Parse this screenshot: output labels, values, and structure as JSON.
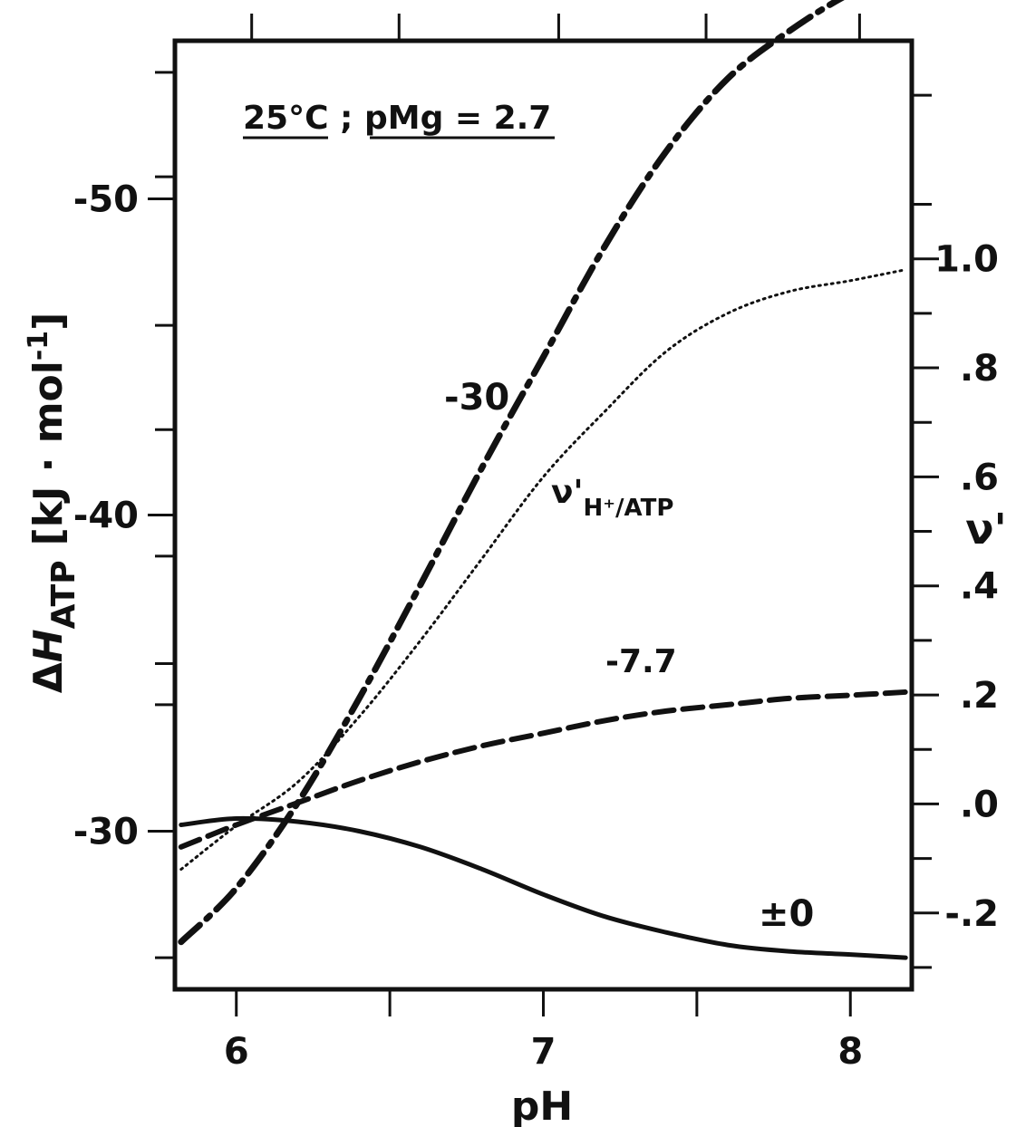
{
  "chart_data": {
    "type": "line",
    "annotation": "25°C ; pMg = 2.7",
    "xlabel": "pH",
    "ylabel_left": "ΔH_ATP [kJ·mol⁻¹]",
    "ylabel_left_parts": {
      "delta": "Δ",
      "h": "H",
      "sub": "ATP",
      "unit_open": "[kJ · mol",
      "unit_sup": "-1",
      "unit_close": "]"
    },
    "ylabel_right": "ν'",
    "xlim": [
      5.8,
      8.2
    ],
    "ylim_left": [
      -25,
      -55
    ],
    "ylim_right": [
      -0.34,
      1.4
    ],
    "x_ticks": [
      {
        "value": 6,
        "label": "6"
      },
      {
        "value": 6.5,
        "label": ""
      },
      {
        "value": 7,
        "label": "7"
      },
      {
        "value": 7.5,
        "label": ""
      },
      {
        "value": 8,
        "label": "8"
      }
    ],
    "top_ticks": [
      6.05,
      6.53,
      7.05,
      7.53,
      8.03
    ],
    "y_left_ticks": [
      {
        "value": -30,
        "label": "-30"
      },
      {
        "value": -40,
        "label": "-40"
      },
      {
        "value": -50,
        "label": "-50"
      }
    ],
    "y_left_minor_ticks": [
      -26.0,
      -34.0,
      -35.3,
      -38.7,
      -42.7,
      -46.0,
      -50.7,
      -54.0
    ],
    "y_right_ticks": [
      {
        "value": -0.2,
        "label": "-.2"
      },
      {
        "value": 0.0,
        "label": ".0"
      },
      {
        "value": 0.2,
        "label": ".2"
      },
      {
        "value": 0.4,
        "label": ".4"
      },
      {
        "value": 0.6,
        "label": ".6"
      },
      {
        "value": 0.8,
        "label": ".8"
      },
      {
        "value": 1.0,
        "label": "1.0"
      }
    ],
    "y_right_minor_ticks": [
      -0.3,
      -0.1,
      0.1,
      0.3,
      0.5,
      0.7,
      0.9,
      1.1,
      1.3
    ],
    "series": [
      {
        "name": "-30",
        "axis": "left",
        "style": "dashdot",
        "x": [
          5.82,
          6.0,
          6.2,
          6.4,
          6.6,
          6.8,
          7.0,
          7.2,
          7.4,
          7.6,
          7.8,
          8.0,
          8.18
        ],
        "y": [
          -26.5,
          -28.2,
          -30.9,
          -34.2,
          -37.8,
          -41.5,
          -45.0,
          -48.5,
          -51.5,
          -53.8,
          -55.3,
          -56.5,
          -57.2
        ]
      },
      {
        "name": "-7.7",
        "axis": "left",
        "style": "dashed",
        "x": [
          5.82,
          6.0,
          6.2,
          6.4,
          6.6,
          6.8,
          7.0,
          7.2,
          7.4,
          7.6,
          7.8,
          8.0,
          8.18
        ],
        "y": [
          -29.5,
          -30.2,
          -30.9,
          -31.6,
          -32.2,
          -32.7,
          -33.1,
          -33.5,
          -33.8,
          -34.0,
          -34.2,
          -34.3,
          -34.4
        ]
      },
      {
        "name": "±0",
        "axis": "left",
        "style": "solid",
        "x": [
          5.82,
          6.0,
          6.2,
          6.4,
          6.6,
          6.8,
          7.0,
          7.2,
          7.4,
          7.6,
          7.8,
          8.0,
          8.18
        ],
        "y": [
          -30.2,
          -30.4,
          -30.3,
          -30.0,
          -29.5,
          -28.8,
          -28.0,
          -27.3,
          -26.8,
          -26.4,
          -26.2,
          -26.1,
          -26.0
        ]
      },
      {
        "name": "ν'_H+/ATP",
        "axis": "right",
        "style": "dotted",
        "x": [
          5.82,
          6.0,
          6.2,
          6.4,
          6.6,
          6.8,
          7.0,
          7.2,
          7.4,
          7.6,
          7.8,
          8.0,
          8.18
        ],
        "y": [
          -0.12,
          -0.04,
          0.04,
          0.16,
          0.3,
          0.45,
          0.6,
          0.72,
          0.83,
          0.9,
          0.94,
          0.96,
          0.98
        ]
      }
    ],
    "curve_labels": {
      "c30": "-30",
      "c77": "-7.7",
      "c0": "±0",
      "nu_main": "ν'",
      "nu_sub": "H⁺/ATP"
    }
  }
}
